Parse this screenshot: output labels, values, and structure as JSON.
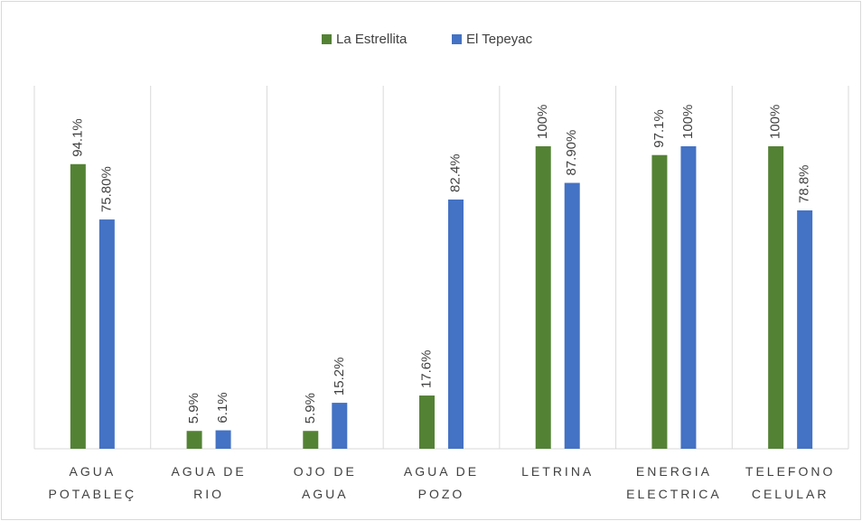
{
  "chart_data": {
    "type": "bar",
    "categories": [
      "AGUA POTABLEÇ",
      "AGUA DE RIO",
      "OJO DE AGUA",
      "AGUA DE POZO",
      "LETRINA",
      "ENERGIA ELECTRICA",
      "TELEFONO CELULAR"
    ],
    "series": [
      {
        "name": "La Estrellita",
        "color": "#548235",
        "values": [
          94.1,
          5.9,
          5.9,
          17.6,
          100,
          97.1,
          100
        ],
        "value_labels": [
          "94.1%",
          "5.9%",
          "5.9%",
          "17.6%",
          "100%",
          "97.1%",
          "100%"
        ]
      },
      {
        "name": "El Tepeyac",
        "color": "#4472c4",
        "values": [
          75.8,
          6.1,
          15.2,
          82.4,
          87.9,
          100,
          78.8
        ],
        "value_labels": [
          "75.80%",
          "6.1%",
          "15.2%",
          "82.4%",
          "87.90%",
          "100%",
          "78.8%"
        ]
      }
    ],
    "legend": "top"
  }
}
